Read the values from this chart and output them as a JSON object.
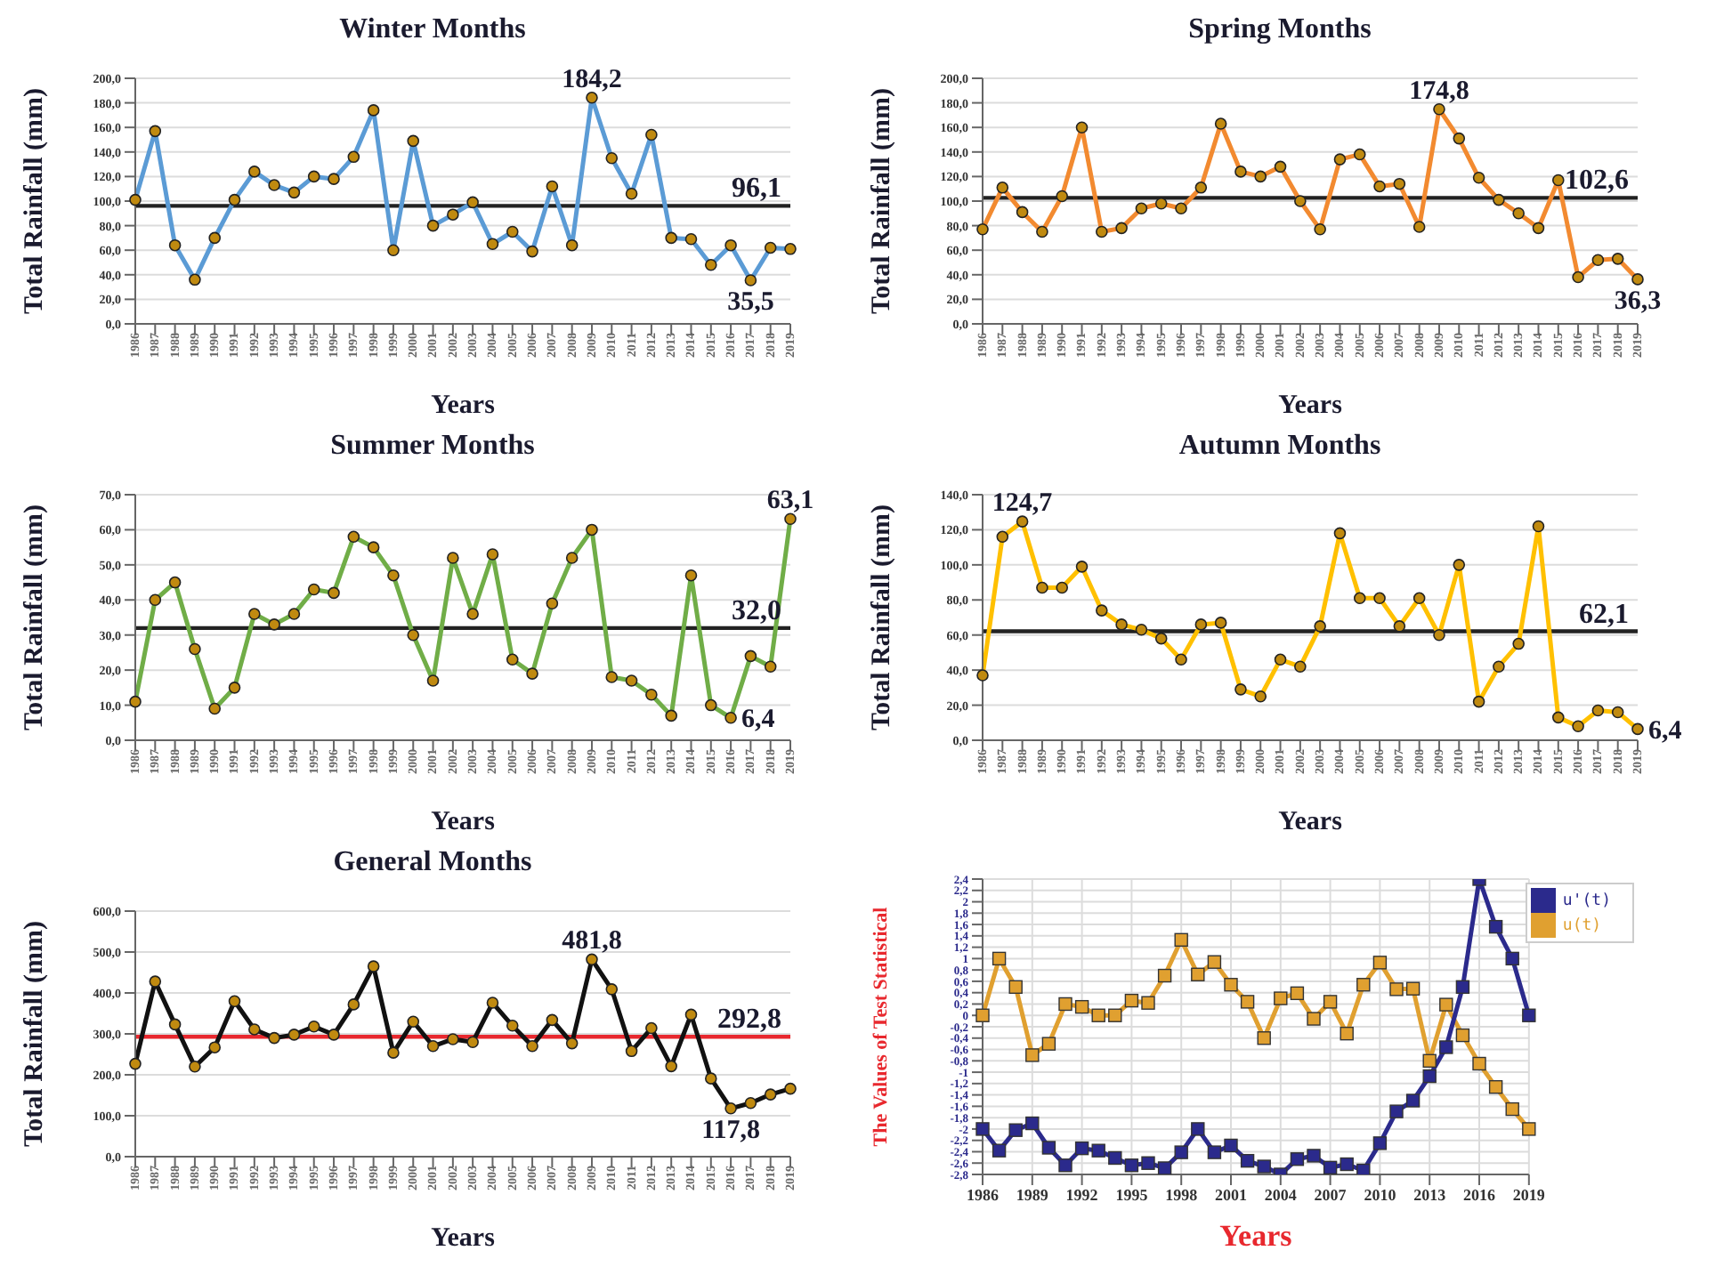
{
  "chart_data": [
    {
      "type": "line",
      "title": "Winter Months",
      "xlabel": "Years",
      "ylabel": "Total Rainfall (mm)",
      "categories": [
        "1986",
        "1987",
        "1988",
        "1989",
        "1990",
        "1991",
        "1992",
        "1993",
        "1994",
        "1995",
        "1996",
        "1997",
        "1998",
        "1999",
        "2000",
        "2001",
        "2002",
        "2003",
        "2004",
        "2005",
        "2006",
        "2007",
        "2008",
        "2009",
        "2010",
        "2011",
        "2012",
        "2013",
        "2014",
        "2015",
        "2016",
        "2017",
        "2018",
        "2019"
      ],
      "values": [
        101,
        157,
        64,
        36,
        70,
        101,
        124,
        113,
        107,
        120,
        118,
        136,
        174,
        60,
        149,
        80,
        89,
        99,
        65,
        75,
        59,
        112,
        64,
        184.2,
        135,
        106,
        154,
        70,
        69,
        48,
        64,
        35.5,
        62,
        61
      ],
      "color": "#5b9bd5",
      "marker": "circle",
      "grid": "y",
      "ylim": [
        0,
        200
      ],
      "yticks": [
        {
          "value": 0,
          "label": "0,0"
        },
        {
          "value": 20,
          "label": "20,0"
        },
        {
          "value": 40,
          "label": "40,0"
        },
        {
          "value": 60,
          "label": "60,0"
        },
        {
          "value": 80,
          "label": "80,0"
        },
        {
          "value": 100,
          "label": "100,0"
        },
        {
          "value": 120,
          "label": "120,0"
        },
        {
          "value": 140,
          "label": "140,0"
        },
        {
          "value": 160,
          "label": "160,0"
        },
        {
          "value": 180,
          "label": "180,0"
        },
        {
          "value": 200,
          "label": "200,0"
        }
      ],
      "ref_lines": [
        {
          "axis": "y",
          "value": 96.1,
          "label": "96,1",
          "color": "#222222"
        }
      ],
      "annotations": [
        {
          "text": "184,2",
          "x": "2009",
          "y": 184.2
        },
        {
          "text": "35,5",
          "x": "2017",
          "y": 35.5
        }
      ]
    },
    {
      "type": "line",
      "title": "Spring Months",
      "xlabel": "Years",
      "ylabel": "Total Rainfall (mm)",
      "categories": [
        "1986",
        "1987",
        "1988",
        "1989",
        "1990",
        "1991",
        "1992",
        "1993",
        "1994",
        "1995",
        "1996",
        "1997",
        "1998",
        "1999",
        "2000",
        "2001",
        "2002",
        "2003",
        "2004",
        "2005",
        "2006",
        "2007",
        "2008",
        "2009",
        "2010",
        "2011",
        "2012",
        "2013",
        "2014",
        "2015",
        "2016",
        "2017",
        "2018",
        "2019"
      ],
      "values": [
        77,
        111,
        91,
        75,
        104,
        160,
        75,
        78,
        94,
        98,
        94,
        111,
        163,
        124,
        120,
        128,
        100,
        77,
        134,
        138,
        112,
        114,
        79,
        174.8,
        151,
        119,
        101,
        90,
        78,
        117,
        38,
        52,
        53,
        36.3
      ],
      "color": "#f28a30",
      "marker": "circle",
      "grid": "y",
      "ylim": [
        0,
        200
      ],
      "yticks": [
        {
          "value": 0,
          "label": "0,0"
        },
        {
          "value": 20,
          "label": "20,0"
        },
        {
          "value": 40,
          "label": "40,0"
        },
        {
          "value": 60,
          "label": "60,0"
        },
        {
          "value": 80,
          "label": "80,0"
        },
        {
          "value": 100,
          "label": "100,0"
        },
        {
          "value": 120,
          "label": "120,0"
        },
        {
          "value": 140,
          "label": "140,0"
        },
        {
          "value": 160,
          "label": "160,0"
        },
        {
          "value": 180,
          "label": "180,0"
        },
        {
          "value": 200,
          "label": "200,0"
        }
      ],
      "ref_lines": [
        {
          "axis": "y",
          "value": 102.6,
          "label": "102,6",
          "color": "#222222"
        }
      ],
      "annotations": [
        {
          "text": "174,8",
          "x": "2009",
          "y": 174.8
        },
        {
          "text": "36,3",
          "x": "2019",
          "y": 36.3
        }
      ]
    },
    {
      "type": "line",
      "title": "Summer Months",
      "xlabel": "Years",
      "ylabel": "Total Rainfall (mm)",
      "categories": [
        "1986",
        "1987",
        "1988",
        "1989",
        "1990",
        "1991",
        "1992",
        "1993",
        "1994",
        "1995",
        "1996",
        "1997",
        "1998",
        "1999",
        "2000",
        "2001",
        "2002",
        "2003",
        "2004",
        "2005",
        "2006",
        "2007",
        "2008",
        "2009",
        "2010",
        "2011",
        "2012",
        "2013",
        "2014",
        "2015",
        "2016",
        "2017",
        "2018",
        "2019"
      ],
      "values": [
        11,
        40,
        45,
        26,
        9,
        15,
        36,
        33,
        36,
        43,
        42,
        58,
        55,
        47,
        30,
        17,
        52,
        36,
        53,
        23,
        19,
        39,
        52,
        60,
        18,
        17,
        13,
        7,
        47,
        10,
        6.4,
        24,
        21,
        63.1
      ],
      "color": "#70ad47",
      "marker": "circle",
      "grid": "y",
      "ylim": [
        0,
        70
      ],
      "yticks": [
        {
          "value": 0,
          "label": "0,0"
        },
        {
          "value": 10,
          "label": "10,0"
        },
        {
          "value": 20,
          "label": "20,0"
        },
        {
          "value": 30,
          "label": "30,0"
        },
        {
          "value": 40,
          "label": "40,0"
        },
        {
          "value": 50,
          "label": "50,0"
        },
        {
          "value": 60,
          "label": "60,0"
        },
        {
          "value": 70,
          "label": "70,0"
        }
      ],
      "ref_lines": [
        {
          "axis": "y",
          "value": 32.0,
          "label": "32,0",
          "color": "#222222"
        }
      ],
      "annotations": [
        {
          "text": "63,1",
          "x": "2019",
          "y": 63.1
        },
        {
          "text": "6,4",
          "x": "2016",
          "y": 6.4
        }
      ]
    },
    {
      "type": "line",
      "title": "Autumn Months",
      "xlabel": "Years",
      "ylabel": "Total Rainfall (mm)",
      "categories": [
        "1986",
        "1987",
        "1988",
        "1989",
        "1990",
        "1991",
        "1992",
        "1993",
        "1994",
        "1995",
        "1996",
        "1997",
        "1998",
        "1999",
        "2000",
        "2001",
        "2002",
        "2003",
        "2004",
        "2005",
        "2006",
        "2007",
        "2008",
        "2009",
        "2010",
        "2011",
        "2012",
        "2013",
        "2014",
        "2015",
        "2016",
        "2017",
        "2018",
        "2019"
      ],
      "values": [
        37,
        116,
        124.7,
        87,
        87,
        99,
        74,
        66,
        63,
        58,
        46,
        66,
        67,
        29,
        25,
        46,
        42,
        65,
        118,
        81,
        81,
        65,
        81,
        60,
        100,
        22,
        42,
        55,
        122,
        13,
        8,
        17,
        16,
        6.4
      ],
      "color": "#ffc000",
      "marker": "circle",
      "grid": "y",
      "ylim": [
        0,
        140
      ],
      "yticks": [
        {
          "value": 0,
          "label": "0,0"
        },
        {
          "value": 20,
          "label": "20,0"
        },
        {
          "value": 40,
          "label": "40,0"
        },
        {
          "value": 60,
          "label": "60,0"
        },
        {
          "value": 80,
          "label": "80,0"
        },
        {
          "value": 100,
          "label": "100,0"
        },
        {
          "value": 120,
          "label": "120,0"
        },
        {
          "value": 140,
          "label": "140,0"
        }
      ],
      "ref_lines": [
        {
          "axis": "y",
          "value": 62.1,
          "label": "62,1",
          "color": "#222222"
        }
      ],
      "annotations": [
        {
          "text": "124,7",
          "x": "1988",
          "y": 124.7
        },
        {
          "text": "6,4",
          "x": "2019",
          "y": 6.4
        }
      ]
    },
    {
      "type": "line",
      "title": "General Months",
      "xlabel": "Years",
      "ylabel": "Total Rainfall (mm)",
      "categories": [
        "1986",
        "1987",
        "1988",
        "1989",
        "1990",
        "1991",
        "1992",
        "1993",
        "1994",
        "1995",
        "1996",
        "1997",
        "1998",
        "1999",
        "2000",
        "2001",
        "2002",
        "2003",
        "2004",
        "2005",
        "2006",
        "2007",
        "2008",
        "2009",
        "2010",
        "2011",
        "2012",
        "2013",
        "2014",
        "2015",
        "2016",
        "2017",
        "2018",
        "2019"
      ],
      "values": [
        227,
        428,
        323,
        220,
        267,
        380,
        311,
        290,
        298,
        318,
        298,
        372,
        465,
        254,
        330,
        270,
        287,
        280,
        376,
        320,
        270,
        334,
        277,
        481.8,
        409,
        258,
        314,
        221,
        347,
        191,
        117.8,
        131,
        152,
        166
      ],
      "color": "#111111",
      "marker": "circle",
      "grid": "y",
      "ylim": [
        0,
        600
      ],
      "yticks": [
        {
          "value": 0,
          "label": "0,0"
        },
        {
          "value": 100,
          "label": "100,0"
        },
        {
          "value": 200,
          "label": "200,0"
        },
        {
          "value": 300,
          "label": "300,0"
        },
        {
          "value": 400,
          "label": "400,0"
        },
        {
          "value": 500,
          "label": "500,0"
        },
        {
          "value": 600,
          "label": "600,0"
        }
      ],
      "ref_lines": [
        {
          "axis": "y",
          "value": 292.8,
          "label": "292,8",
          "color": "#e8282e"
        }
      ],
      "annotations": [
        {
          "text": "481,8",
          "x": "2009",
          "y": 481.8
        },
        {
          "text": "117,8",
          "x": "2016",
          "y": 117.8
        }
      ]
    },
    {
      "type": "line",
      "xlabel": "Years",
      "ylabel": "The Values of Test Statistical",
      "x": [
        1986,
        1987,
        1988,
        1989,
        1990,
        1991,
        1992,
        1993,
        1994,
        1995,
        1996,
        1997,
        1998,
        1999,
        2000,
        2001,
        2002,
        2003,
        2004,
        2005,
        2006,
        2007,
        2008,
        2009,
        2010,
        2011,
        2012,
        2013,
        2014,
        2015,
        2016,
        2017,
        2018,
        2019
      ],
      "series": [
        {
          "name": "u(t)",
          "color": "#e0a030",
          "values": [
            0,
            1,
            0.5,
            -0.7,
            -0.5,
            0.2,
            0.15,
            0,
            0,
            0.26,
            0.22,
            0.7,
            1.33,
            0.72,
            0.94,
            0.54,
            0.24,
            -0.4,
            0.3,
            0.39,
            -0.06,
            0.24,
            -0.32,
            0.54,
            0.93,
            0.46,
            0.47,
            -0.8,
            0.19,
            -0.35,
            -0.85,
            -1.26,
            -1.65,
            -2
          ]
        },
        {
          "name": "u'(t)",
          "color": "#2b2a8c",
          "values": [
            -2,
            -2.38,
            -2.02,
            -1.9,
            -2.33,
            -2.64,
            -2.34,
            -2.38,
            -2.51,
            -2.64,
            -2.6,
            -2.69,
            -2.41,
            -2,
            -2.41,
            -2.29,
            -2.56,
            -2.66,
            -2.8,
            -2.53,
            -2.47,
            -2.68,
            -2.62,
            -2.73,
            -2.25,
            -1.69,
            -1.5,
            -1.07,
            -0.56,
            0.5,
            2.4,
            1.56,
            1,
            0
          ]
        }
      ],
      "marker": "square",
      "grid": true,
      "legend": "top right",
      "xlim": [
        1986,
        2019
      ],
      "xticks": [
        1986,
        1989,
        1992,
        1995,
        1998,
        2001,
        2004,
        2007,
        2010,
        2013,
        2016,
        2019
      ],
      "ylim": [
        -2.8,
        2.4
      ],
      "yticks": [
        {
          "value": 2.4,
          "label": "2,4"
        },
        {
          "value": 2.2,
          "label": "2,2"
        },
        2,
        {
          "value": 1.8,
          "label": "1,8"
        },
        {
          "value": 1.6,
          "label": "1,6"
        },
        {
          "value": 1.4,
          "label": "1,4"
        },
        {
          "value": 1.2,
          "label": "1,2"
        },
        1,
        {
          "value": 0.8,
          "label": "0,8"
        },
        {
          "value": 0.6,
          "label": "0,6"
        },
        {
          "value": 0.4,
          "label": "0,4"
        },
        {
          "value": 0.2,
          "label": "0,2"
        },
        0,
        {
          "value": -0.2,
          "label": "-0,2"
        },
        {
          "value": -0.4,
          "label": "-0,4"
        },
        {
          "value": -0.6,
          "label": "-0,6"
        },
        {
          "value": -0.8,
          "label": "-0,8"
        },
        -1,
        {
          "value": -1.2,
          "label": "-1,2"
        },
        {
          "value": -1.4,
          "label": "-1,4"
        },
        {
          "value": -1.6,
          "label": "-1,6"
        },
        {
          "value": -1.8,
          "label": "-1,8"
        },
        -2,
        {
          "value": -2.2,
          "label": "-2,2"
        },
        {
          "value": -2.4,
          "label": "-2,4"
        },
        {
          "value": -2.6,
          "label": "-2,6"
        },
        {
          "value": -2.8,
          "label": "-2,8"
        }
      ]
    }
  ]
}
